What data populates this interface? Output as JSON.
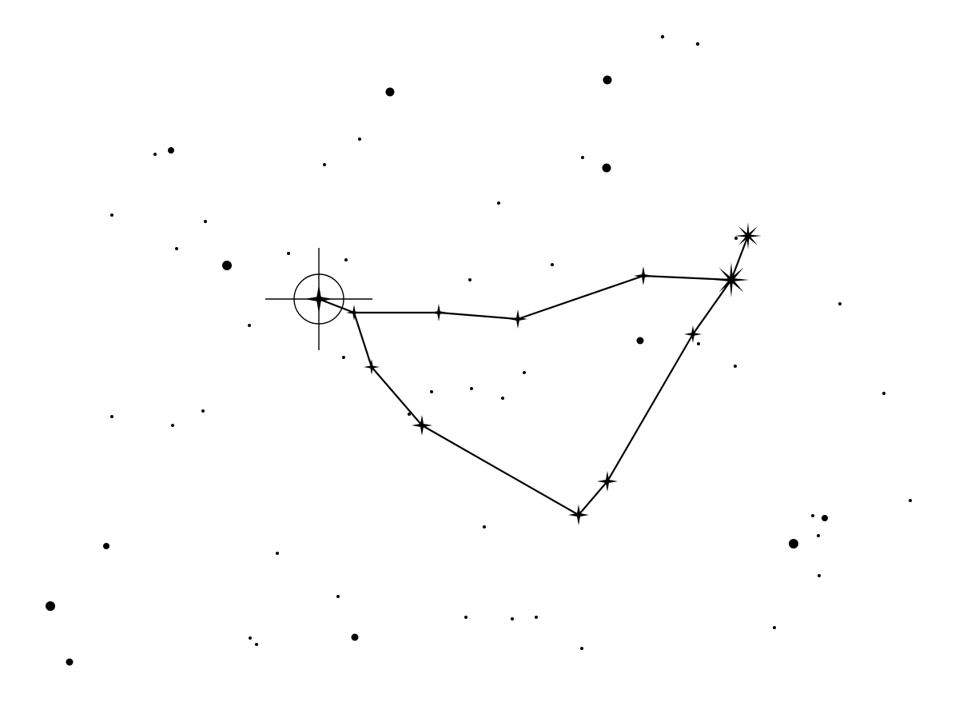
{
  "colors": {
    "background": "#ffffff",
    "ink": "#000000"
  },
  "icons": {
    "target_marker": "crosshair-circle-icon",
    "star_small": "four-point-star-icon",
    "star_large": "eight-point-star-icon"
  }
}
